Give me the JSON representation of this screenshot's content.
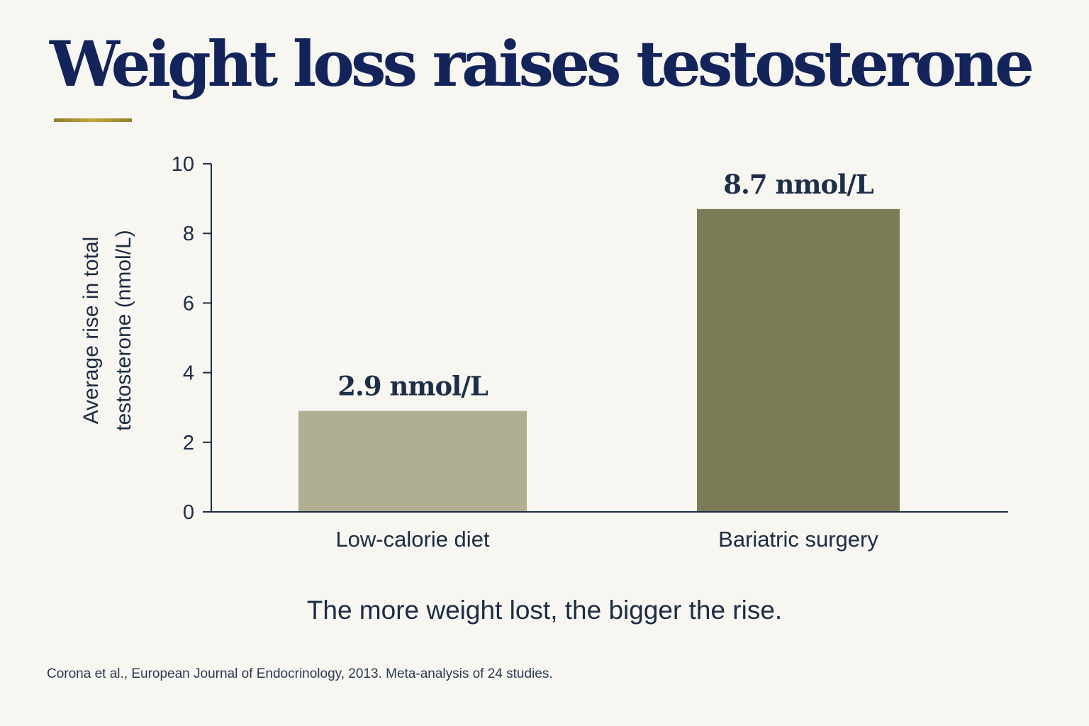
{
  "chart_data": {
    "type": "bar",
    "title": "Weight loss raises testosterone",
    "subtitle": "The more weight lost, the bigger the rise.",
    "ylabel": "Average rise in total testosterone (nmol/L)",
    "ylabel_lines": [
      "Average rise in total",
      "testosterone (nmol/L)"
    ],
    "categories": [
      "Low-calorie diet",
      "Bariatric surgery"
    ],
    "values": [
      2.9,
      8.7
    ],
    "data_labels": [
      "2.9 nmol/L",
      "8.7 nmol/L"
    ],
    "ylim": [
      0,
      10
    ],
    "yticks": [
      "0",
      "2",
      "4",
      "6",
      "8",
      "10"
    ],
    "bar_colors": [
      "#b0ae91",
      "#7c7b58"
    ],
    "grid": false,
    "legend": "none",
    "source": "Corona et al., European Journal of Endocrinology, 2013. Meta-analysis of 24 studies."
  },
  "colors": {
    "title": "#13245a",
    "accent_rule": "#c6a63a",
    "axis": "#1c2c44",
    "background": "#f8f6f1"
  }
}
